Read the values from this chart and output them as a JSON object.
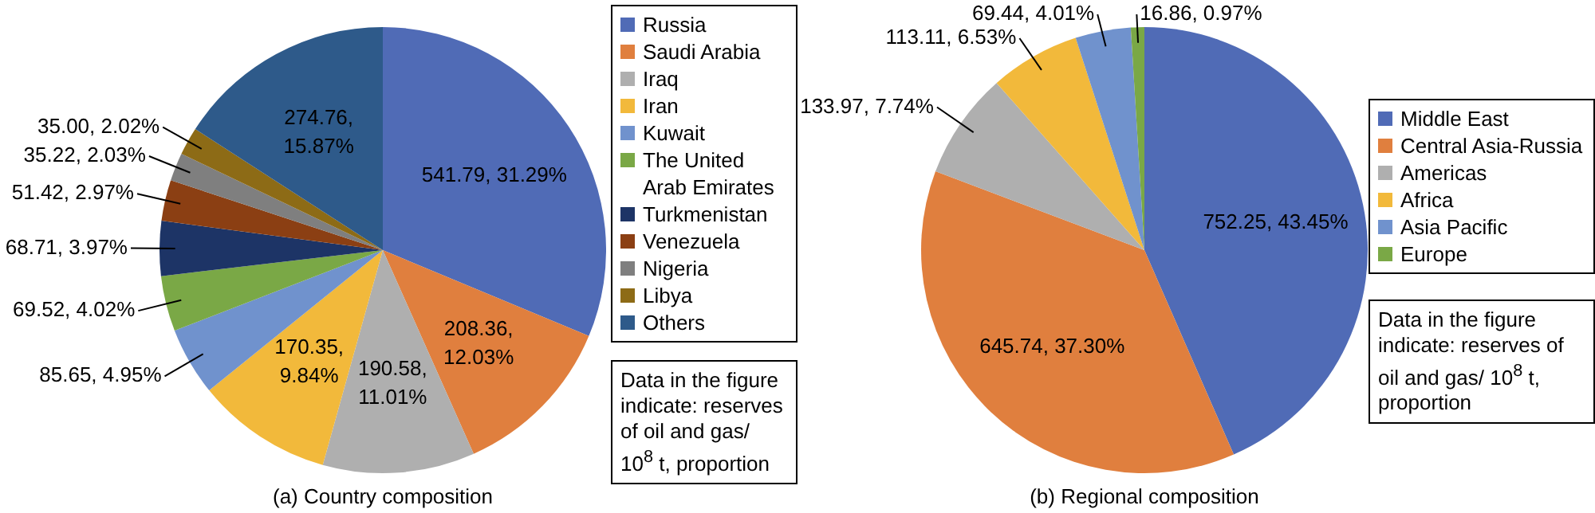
{
  "chart_data": [
    {
      "type": "pie",
      "title": "(a) Country composition",
      "categories": [
        "Russia",
        "Saudi Arabia",
        "Iraq",
        "Iran",
        "Kuwait",
        "The United Arab Emirates",
        "Turkmenistan",
        "Venezuela",
        "Nigeria",
        "Libya",
        "Others"
      ],
      "values": [
        541.79,
        208.36,
        190.58,
        170.35,
        85.65,
        69.52,
        68.71,
        51.42,
        35.22,
        35.0,
        274.76
      ],
      "value_labels": [
        "541.79, 31.29%",
        "208.36, 12.03%",
        "190.58, 11.01%",
        "170.35, 9.84%",
        "85.65, 4.95%",
        "69.52, 4.02%",
        "68.71, 3.97%",
        "51.42, 2.97%",
        "35.22, 2.03%",
        "35.00, 2.02%",
        "274.76, 15.87%"
      ],
      "colors": [
        "#506bb6",
        "#e07f3e",
        "#afafaf",
        "#f2b93b",
        "#7092cd",
        "#7aa846",
        "#1d3466",
        "#8b3f13",
        "#7f7f7f",
        "#8d6b16",
        "#2e5a8a"
      ],
      "legend": "right",
      "annotations": [
        "Data in the figure indicate: reserves of oil and gas/ 10$^{8}$ t, proportion"
      ]
    },
    {
      "type": "pie",
      "title": "(b) Regional composition",
      "categories": [
        "Middle East",
        "Central Asia-Russia",
        "Americas",
        "Africa",
        "Asia Pacific",
        "Europe"
      ],
      "values": [
        752.25,
        645.74,
        133.97,
        113.11,
        69.44,
        16.86
      ],
      "value_labels": [
        "752.25, 43.45%",
        "645.74, 37.30%",
        "133.97, 7.74%",
        "113.11, 6.53%",
        "69.44, 4.01%",
        "16.86, 0.97%"
      ],
      "colors": [
        "#506bb6",
        "#e07f3e",
        "#afafaf",
        "#f2b93b",
        "#7092cd",
        "#7aa846"
      ],
      "legend": "right",
      "annotations": [
        "Data in the figure indicate: reserves of oil and gas/ 10$^{8}$ t, proportion"
      ]
    }
  ]
}
